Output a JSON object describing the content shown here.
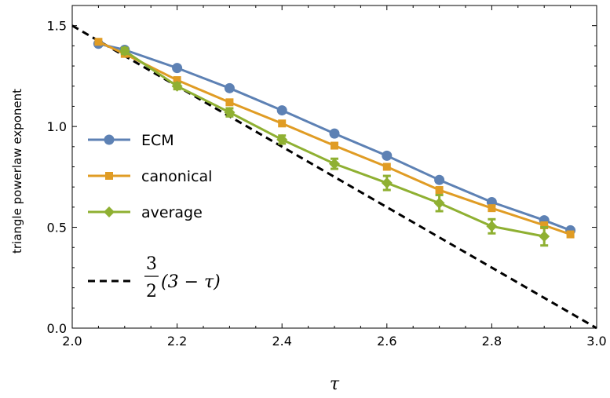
{
  "chart_data": {
    "type": "line",
    "xlabel": "τ",
    "ylabel": "triangle powerlaw exponent",
    "xlim": [
      2.0,
      3.0
    ],
    "ylim": [
      0.0,
      1.6
    ],
    "x_ticks": [
      "2.0",
      "2.2",
      "2.4",
      "2.6",
      "2.8",
      "3.0"
    ],
    "y_ticks": [
      "0.0",
      "0.5",
      "1.0",
      "1.5"
    ],
    "legend_position": "left",
    "series": [
      {
        "name": "ECM",
        "color": "#5d81b4",
        "marker": "circle",
        "x": [
          2.05,
          2.1,
          2.2,
          2.3,
          2.4,
          2.5,
          2.6,
          2.7,
          2.8,
          2.9,
          2.95
        ],
        "y": [
          1.41,
          1.38,
          1.29,
          1.19,
          1.08,
          0.965,
          0.855,
          0.735,
          0.625,
          0.535,
          0.485
        ]
      },
      {
        "name": "canonical",
        "color": "#e09c24",
        "marker": "square",
        "x": [
          2.05,
          2.1,
          2.2,
          2.3,
          2.4,
          2.5,
          2.6,
          2.7,
          2.8,
          2.9,
          2.95
        ],
        "y": [
          1.42,
          1.36,
          1.23,
          1.12,
          1.015,
          0.905,
          0.8,
          0.685,
          0.595,
          0.51,
          0.465
        ]
      },
      {
        "name": "average",
        "color": "#8fb032",
        "marker": "diamond",
        "x": [
          2.1,
          2.2,
          2.3,
          2.4,
          2.5,
          2.6,
          2.7,
          2.8,
          2.9
        ],
        "y": [
          1.375,
          1.2,
          1.07,
          0.935,
          0.815,
          0.72,
          0.62,
          0.505,
          0.455
        ],
        "err": [
          0.015,
          0.015,
          0.02,
          0.02,
          0.025,
          0.035,
          0.04,
          0.035,
          0.045
        ]
      }
    ],
    "reference_line": {
      "name_parts": {
        "num": "3",
        "den": "2",
        "expr": "(3 − τ)"
      },
      "color": "#000000",
      "style": "dashed",
      "x": [
        2.0,
        3.0
      ],
      "y": [
        1.5,
        0.0
      ]
    }
  }
}
